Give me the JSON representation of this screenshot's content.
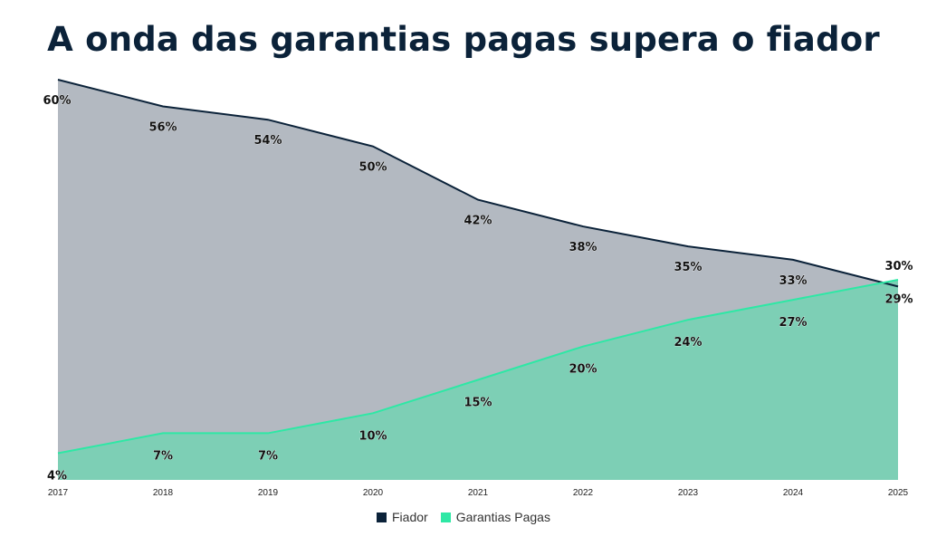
{
  "title": "A onda das garantias pagas supera o fiador",
  "chart_data": {
    "type": "area",
    "categories": [
      "2017",
      "2018",
      "2019",
      "2020",
      "2021",
      "2022",
      "2023",
      "2024",
      "2025"
    ],
    "ylim": [
      0,
      60
    ],
    "series": [
      {
        "name": "Fiador",
        "values": [
          60,
          56,
          54,
          50,
          42,
          38,
          35,
          33,
          29
        ],
        "line_color": "#0b2239",
        "fill_color": "#b3b9c1"
      },
      {
        "name": "Garantias Pagas",
        "values": [
          4,
          7,
          7,
          10,
          15,
          20,
          24,
          27,
          30
        ],
        "line_color": "#2ee8a5",
        "fill_color": "#7dcfb5"
      }
    ],
    "data_labels": {
      "Fiador": [
        "60%",
        "56%",
        "54%",
        "50%",
        "42%",
        "38%",
        "35%",
        "33%",
        "29%"
      ],
      "Garantias Pagas": [
        "4%",
        "7%",
        "7%",
        "10%",
        "15%",
        "20%",
        "24%",
        "27%",
        "30%"
      ]
    },
    "legend_position": "bottom",
    "grid": false
  }
}
